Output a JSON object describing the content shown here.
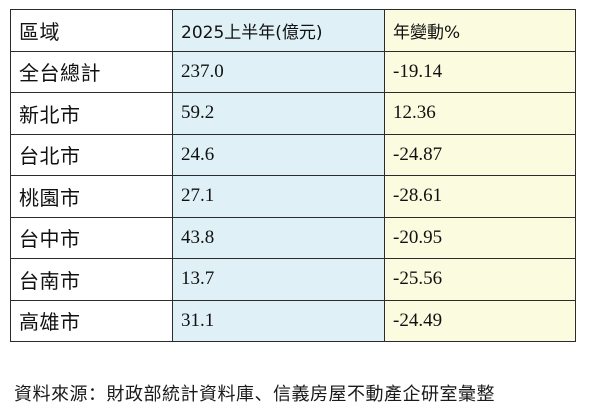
{
  "table": {
    "headers": [
      "區域",
      "2025上半年(億元)",
      "年變動%"
    ],
    "rows": [
      {
        "region": "全台總計",
        "amount": "237.0",
        "change": "-19.14"
      },
      {
        "region": "新北市",
        "amount": "59.2",
        "change": "12.36"
      },
      {
        "region": "台北市",
        "amount": "24.6",
        "change": "-24.87"
      },
      {
        "region": "桃園市",
        "amount": "27.1",
        "change": "-28.61"
      },
      {
        "region": "台中市",
        "amount": "43.8",
        "change": "-20.95"
      },
      {
        "region": "台南市",
        "amount": "13.7",
        "change": "-25.56"
      },
      {
        "region": "高雄市",
        "amount": "31.1",
        "change": "-24.49"
      }
    ]
  },
  "source": "資料來源：財政部統計資料庫、信義房屋不動產企研室彙整",
  "colors": {
    "amount_column_bg": "#dff1f7",
    "change_column_bg": "#fbfbe0",
    "border": "#2b2b2b"
  }
}
